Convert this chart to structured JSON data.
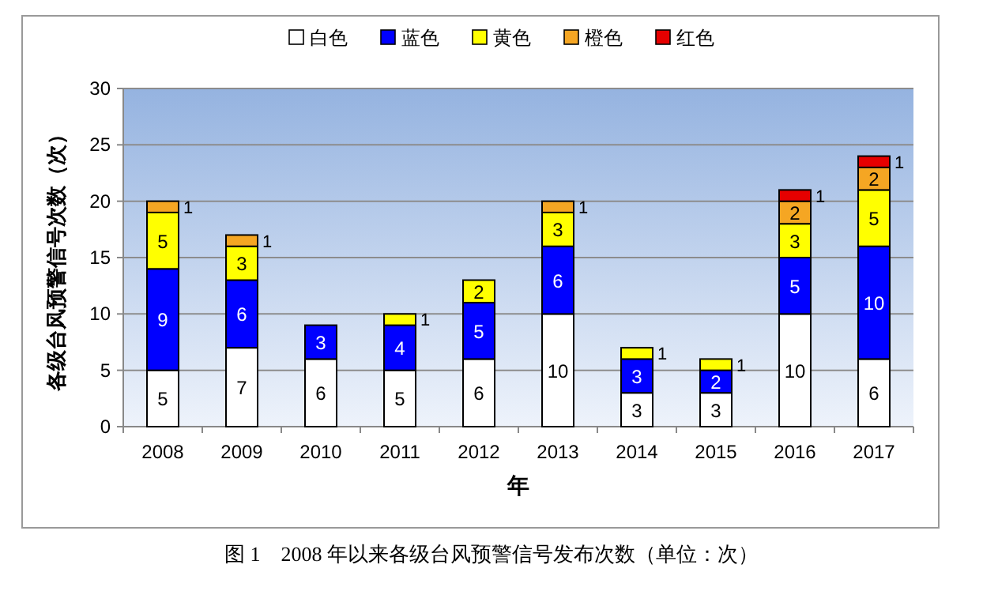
{
  "chart_data": {
    "type": "bar",
    "stacked": true,
    "xlabel": "年",
    "ylabel": "各级台风预警信号次数（次）",
    "categories": [
      "2008",
      "2009",
      "2010",
      "2011",
      "2012",
      "2013",
      "2014",
      "2015",
      "2016",
      "2017"
    ],
    "series": [
      {
        "name": "白色",
        "color": "#ffffff",
        "values": [
          5,
          7,
          6,
          5,
          6,
          10,
          3,
          3,
          10,
          6
        ]
      },
      {
        "name": "蓝色",
        "color": "#0000ff",
        "values": [
          9,
          6,
          3,
          4,
          5,
          6,
          3,
          2,
          5,
          10
        ]
      },
      {
        "name": "黄色",
        "color": "#ffff00",
        "values": [
          5,
          3,
          null,
          1,
          2,
          3,
          1,
          1,
          3,
          5
        ]
      },
      {
        "name": "橙色",
        "color": "#f5a623",
        "values": [
          1,
          1,
          null,
          null,
          null,
          1,
          null,
          null,
          2,
          2
        ]
      },
      {
        "name": "红色",
        "color": "#e60000",
        "values": [
          null,
          null,
          null,
          null,
          null,
          null,
          null,
          null,
          1,
          1
        ]
      }
    ],
    "ylim": [
      0,
      30
    ],
    "yticks": [
      0,
      5,
      10,
      15,
      20,
      25,
      30
    ],
    "grid": "y",
    "legend": "top",
    "data_labels": true,
    "annotations": [
      "图 1　2008 年以来各级台风预警信号发布次数（单位：次）"
    ]
  }
}
